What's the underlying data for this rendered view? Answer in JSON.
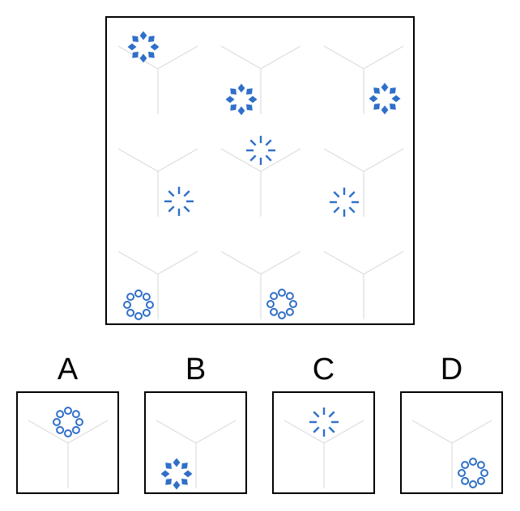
{
  "puzzle": {
    "colors": {
      "shape": "#2f6fc9",
      "axes": "#dddddd",
      "border": "#000000"
    },
    "grid": [
      {
        "shape": "diamond-ring",
        "position": "top-left"
      },
      {
        "shape": "diamond-ring",
        "position": "bottom-left"
      },
      {
        "shape": "diamond-ring",
        "position": "bottom-right"
      },
      {
        "shape": "dash-ring",
        "position": "bottom-right"
      },
      {
        "shape": "dash-ring",
        "position": "top-center"
      },
      {
        "shape": "dash-ring",
        "position": "bottom-left"
      },
      {
        "shape": "circle-ring",
        "position": "bottom-left"
      },
      {
        "shape": "circle-ring",
        "position": "bottom-right"
      },
      {
        "shape": "missing",
        "position": ""
      }
    ],
    "options": [
      {
        "label": "A",
        "shape": "circle-ring",
        "position": "top-center"
      },
      {
        "label": "B",
        "shape": "diamond-ring",
        "position": "bottom-left"
      },
      {
        "label": "C",
        "shape": "dash-ring",
        "position": "top-center"
      },
      {
        "label": "D",
        "shape": "circle-ring",
        "position": "bottom-right"
      }
    ]
  }
}
